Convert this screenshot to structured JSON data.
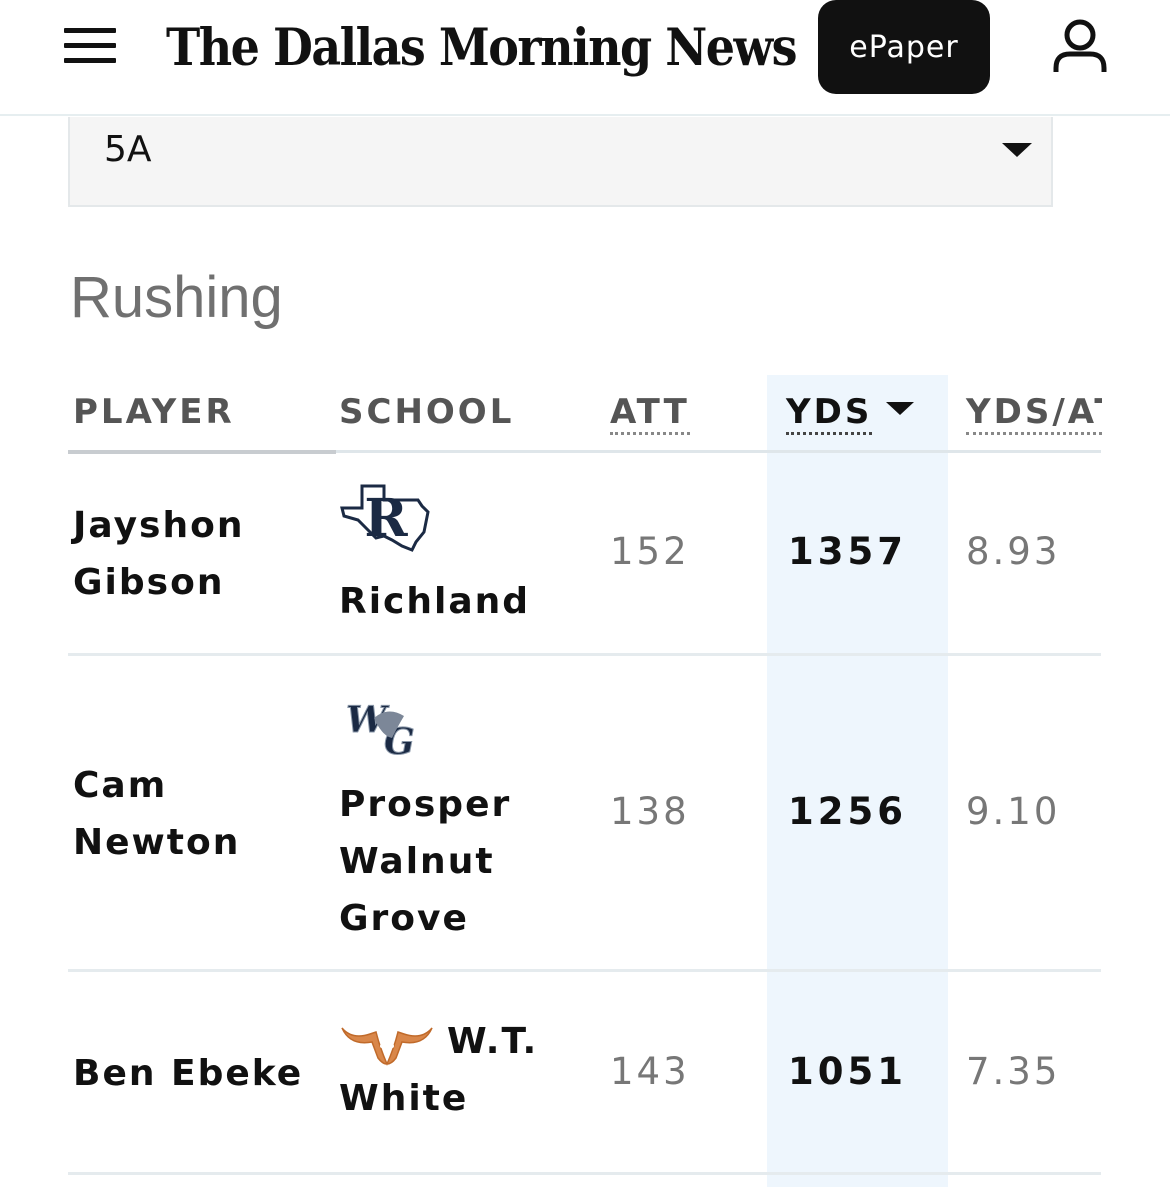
{
  "header": {
    "logo_text": "The Dallas Morning News",
    "epaper_label": "ePaper"
  },
  "filter": {
    "division_selected": "5A"
  },
  "section": {
    "title": "Rushing"
  },
  "table": {
    "columns": {
      "player": "PLAYER",
      "school": "SCHOOL",
      "att": "ATT",
      "yds": "YDS",
      "ypa": "YDS/AT"
    },
    "sorted_by": "YDS",
    "rows": [
      {
        "player_first": "Jayshon",
        "player_last": "Gibson",
        "school_lines": [
          "Richland"
        ],
        "logo": "richland-logo",
        "att": "152",
        "yds": "1357",
        "ypa": "8.93"
      },
      {
        "player_first": "Cam",
        "player_last": "Newton",
        "school_lines": [
          "Prosper",
          "Walnut",
          "Grove"
        ],
        "logo": "walnut-grove-logo",
        "att": "138",
        "yds": "1256",
        "ypa": "9.10"
      },
      {
        "player_first": "Ben Ebeke",
        "player_last": "",
        "school_lines": [
          "W.T.",
          "White"
        ],
        "logo": "wt-white-longhorn-logo",
        "att": "143",
        "yds": "1051",
        "ypa": "7.35"
      }
    ]
  },
  "icons": {
    "menu": "hamburger-menu-icon",
    "user": "user-account-icon",
    "dropdown": "caret-down-icon",
    "sort": "sort-descending-icon"
  },
  "colors": {
    "header_button_bg": "#111111",
    "highlight_column_bg": "#eef6fd",
    "muted_text": "#777777"
  }
}
